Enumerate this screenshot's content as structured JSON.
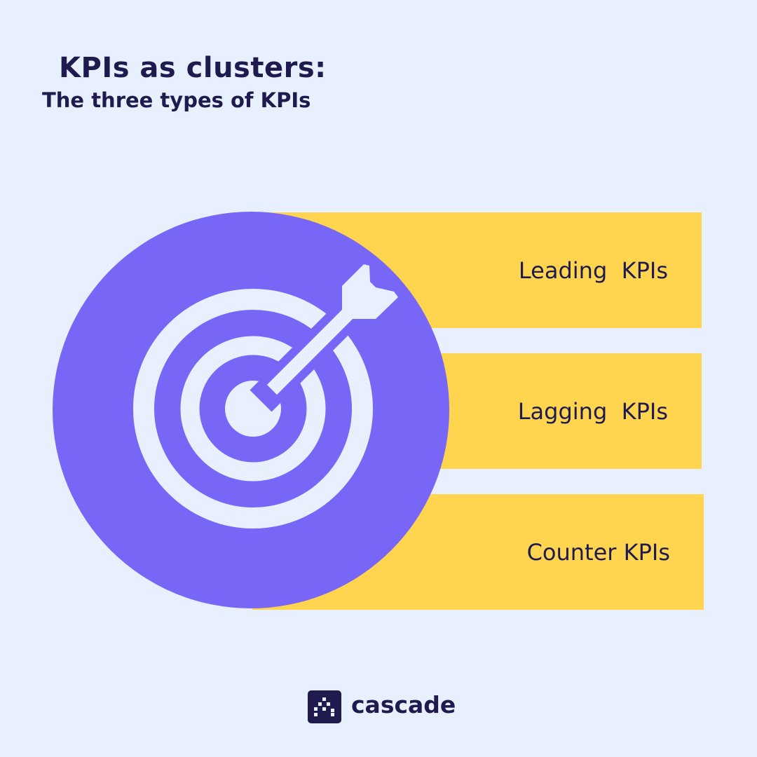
{
  "title": "KPIs as clusters:",
  "subtitle": "The three types of KPIs",
  "items": [
    {
      "label": "Leading  KPIs"
    },
    {
      "label": "Lagging  KPIs"
    },
    {
      "label": "Counter KPIs"
    }
  ],
  "icon": "target-with-arrow-icon",
  "brand": "cascade",
  "colors": {
    "background": "#e9f0fd",
    "circle": "#7866f7",
    "bars": "#ffd550",
    "text": "#1f1b4f"
  }
}
